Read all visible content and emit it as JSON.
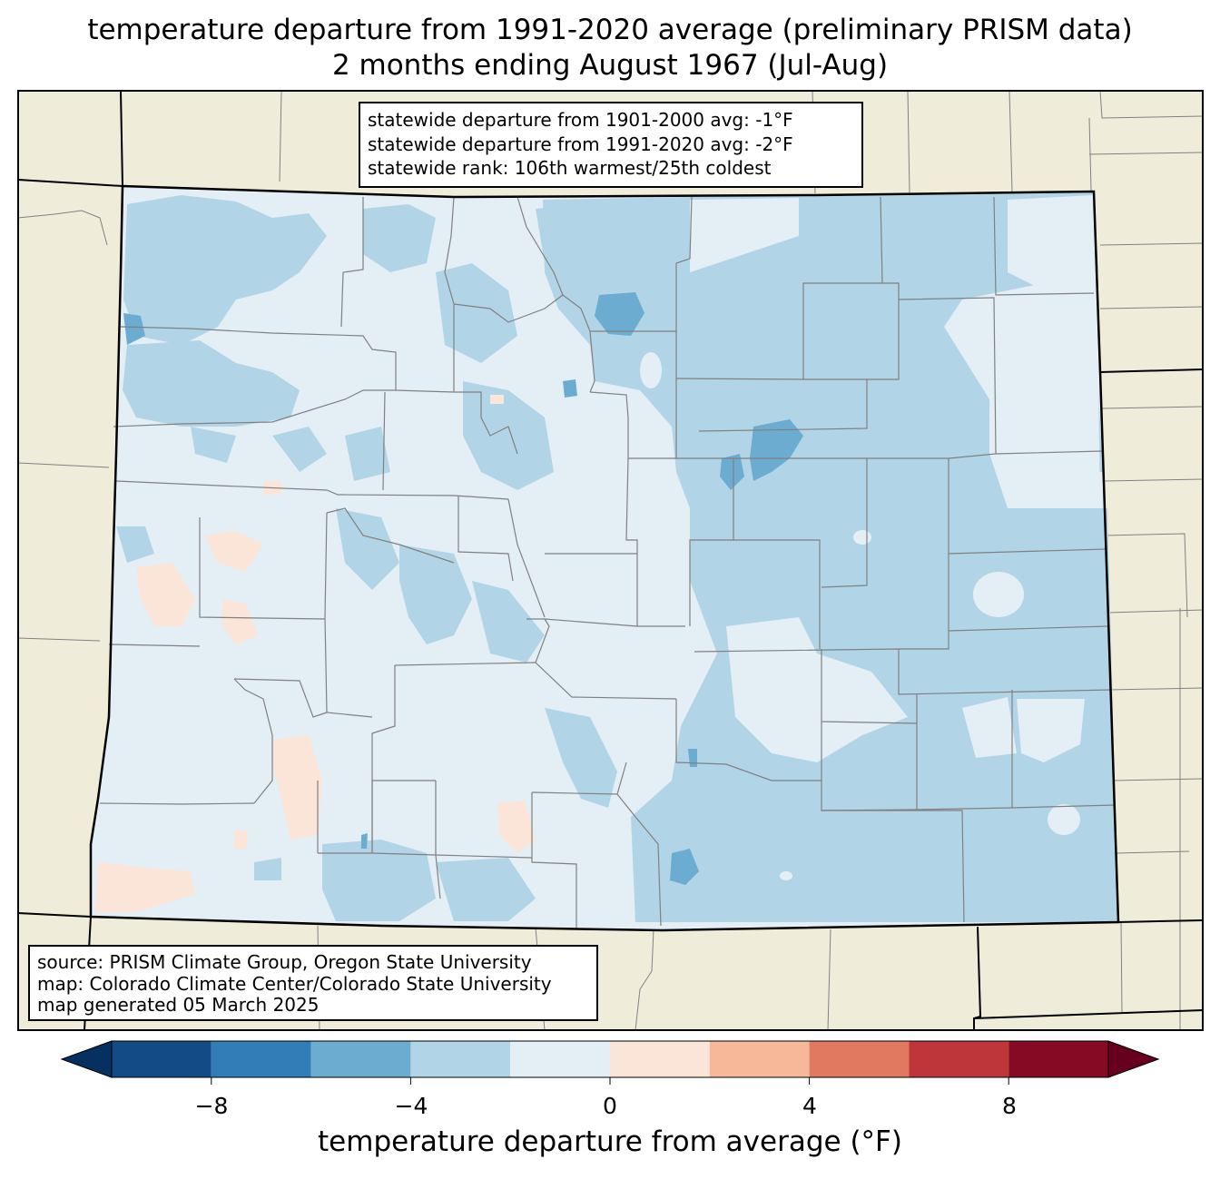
{
  "title": {
    "line1": "temperature departure from 1991-2020 average (preliminary PRISM data)",
    "line2": "2 months ending August 1967 (Jul-Aug)"
  },
  "stats_box": {
    "line1": "statewide departure from 1901-2000 avg: -1°F",
    "line2": "statewide departure from 1991-2020 avg: -2°F",
    "line3": "statewide rank: 106th warmest/25th coldest"
  },
  "credits_box": {
    "line1": "source: PRISM Climate Group, Oregon State University",
    "line2": "map: Colorado Climate Center/Colorado State University",
    "line3": "map generated 05 March 2025"
  },
  "colorbar": {
    "label": "temperature departure from average (°F)",
    "ticks": [
      "−8",
      "−4",
      "0",
      "4",
      "8"
    ],
    "bins": [
      {
        "range": "< -10",
        "color": "#053061"
      },
      {
        "range": "-10 to -8",
        "color": "#134b87"
      },
      {
        "range": "-8 to -6",
        "color": "#327db7"
      },
      {
        "range": "-6 to -4",
        "color": "#6bacd0"
      },
      {
        "range": "-4 to -2",
        "color": "#b1d5e7"
      },
      {
        "range": "-2 to 0",
        "color": "#e4eef5"
      },
      {
        "range": "0 to 2",
        "color": "#fbe5d8"
      },
      {
        "range": "2 to 4",
        "color": "#f7b799"
      },
      {
        "range": "4 to 6",
        "color": "#e17860"
      },
      {
        "range": "6 to 8",
        "color": "#bf363a"
      },
      {
        "range": "8 to 10",
        "color": "#870a24"
      },
      {
        "range": "> 10",
        "color": "#67001f"
      }
    ]
  },
  "colors": {
    "land_outside": "#efedda",
    "county_lines": "#808080",
    "state_lines": "#000000"
  }
}
